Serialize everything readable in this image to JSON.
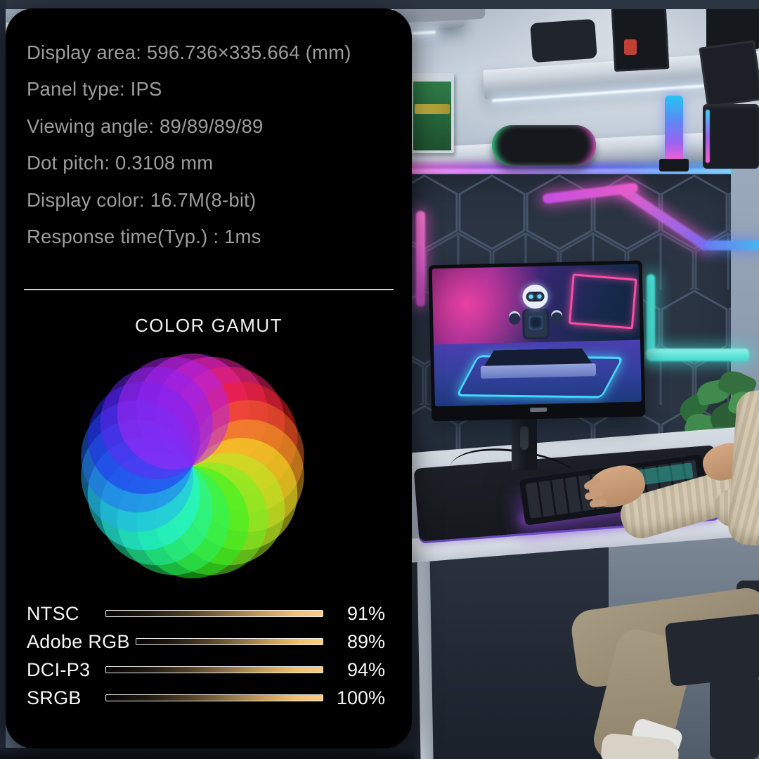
{
  "card": {
    "spec_lines": [
      "Display area: 596.736×335.664 (mm)",
      "Panel type: IPS",
      "Viewing angle: 89/89/89/89",
      "Dot pitch: 0.3108 mm",
      "Display color: 16.7M(8-bit)",
      "Response time(Typ.) : 1ms"
    ],
    "section_title": "COLOR GAMUT"
  },
  "chart_data": {
    "type": "bar",
    "title": "COLOR GAMUT",
    "categories": [
      "NTSC",
      "Adobe RGB",
      "DCI-P3",
      "SRGB"
    ],
    "values": [
      91,
      89,
      94,
      100
    ],
    "unit": "%",
    "rows": [
      {
        "label": "NTSC",
        "value_label": "91%"
      },
      {
        "label": "Adobe RGB",
        "value_label": "89%"
      },
      {
        "label": "DCI-P3",
        "value_label": "94%"
      },
      {
        "label": "SRGB",
        "value_label": "100%"
      }
    ],
    "xlim": [
      0,
      100
    ],
    "legend": "none",
    "bar_note": "decorative equal-length gradient bars, black to gold, white outline; values shown as text only"
  },
  "color_wheel": {
    "petals": 18,
    "hue_start": 300,
    "hue_step": 20,
    "saturation": 92,
    "lightness": 55,
    "petal_radius": 80,
    "outer_radius": 160,
    "petal_opacity": 0.5,
    "background": "#000000"
  },
  "palette": {
    "card_background": "#000000",
    "spec_text": "#9c9c9c",
    "heading_text": "#f2f2f2",
    "divider": "#d2d2d2",
    "bar_gold": "#f9cd84",
    "bar_dark": "#050505",
    "neon_cyan": "#45d8ff",
    "neon_magenta": "#e05cc8",
    "neon_purple": "#8e5ae8",
    "neon_blue": "#4f6ef0",
    "wall_gray": "#a2b1c1",
    "hex_panel": "#2a3443",
    "desk_gray": "#c3cad4",
    "sweater_beige": "#cfc4ad",
    "screen_pink": "#ff4da6"
  }
}
